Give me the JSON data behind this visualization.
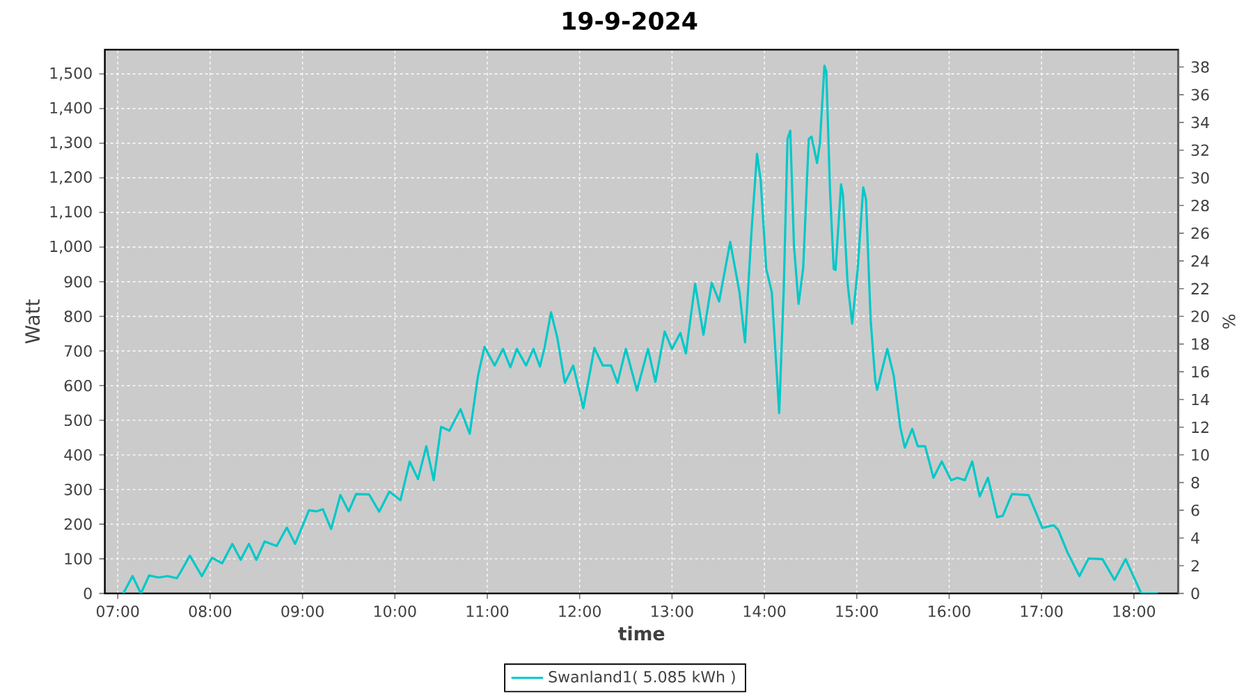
{
  "chart_data": {
    "type": "line",
    "title": "19-9-2024",
    "xlabel": "time",
    "ylabel": "Watt",
    "y2label": "%",
    "x": [
      7.06,
      7.16,
      7.25,
      7.34,
      7.44,
      7.54,
      7.64,
      7.69,
      7.78,
      7.91,
      8.02,
      8.13,
      8.24,
      8.33,
      8.42,
      8.5,
      8.59,
      8.72,
      8.83,
      8.92,
      9.07,
      9.15,
      9.22,
      9.31,
      9.41,
      9.5,
      9.58,
      9.72,
      9.83,
      9.94,
      10.06,
      10.16,
      10.25,
      10.34,
      10.42,
      10.5,
      10.59,
      10.71,
      10.81,
      10.9,
      10.97,
      11.08,
      11.17,
      11.25,
      11.32,
      11.42,
      11.5,
      11.57,
      11.62,
      11.69,
      11.76,
      11.84,
      11.93,
      12.04,
      12.16,
      12.25,
      12.34,
      12.41,
      12.5,
      12.62,
      12.74,
      12.82,
      12.92,
      13.0,
      13.09,
      13.15,
      13.25,
      13.34,
      13.43,
      13.51,
      13.63,
      13.73,
      13.79,
      13.86,
      13.92,
      13.96,
      14.02,
      14.08,
      14.16,
      14.21,
      14.25,
      14.28,
      14.32,
      14.37,
      14.42,
      14.48,
      14.51,
      14.57,
      14.6,
      14.65,
      14.67,
      14.71,
      14.75,
      14.77,
      14.83,
      14.85,
      14.9,
      14.95,
      15.01,
      15.07,
      15.1,
      15.15,
      15.2,
      15.22,
      15.33,
      15.4,
      15.47,
      15.52,
      15.6,
      15.66,
      15.74,
      15.83,
      15.92,
      16.02,
      16.09,
      16.17,
      16.25,
      16.33,
      16.42,
      16.52,
      16.58,
      16.68,
      16.86,
      17.01,
      17.13,
      17.18,
      17.28,
      17.41,
      17.51,
      17.66,
      17.79,
      17.91,
      18.08,
      18.26
    ],
    "series": [
      {
        "name": "Swanland1( 5.085 kWh )",
        "color": "#00c8c8",
        "values": [
          0,
          50,
          0,
          52,
          46,
          50,
          44,
          66,
          109,
          50,
          103,
          87,
          143,
          97,
          143,
          97,
          150,
          137,
          190,
          143,
          240,
          237,
          243,
          186,
          284,
          237,
          287,
          286,
          236,
          294,
          269,
          381,
          330,
          425,
          327,
          481,
          470,
          532,
          461,
          629,
          712,
          658,
          706,
          653,
          706,
          658,
          706,
          655,
          709,
          812,
          736,
          608,
          658,
          535,
          709,
          658,
          658,
          608,
          706,
          586,
          706,
          611,
          756,
          706,
          752,
          693,
          894,
          747,
          897,
          843,
          1015,
          870,
          725,
          1044,
          1269,
          1192,
          937,
          870,
          521,
          883,
          1312,
          1336,
          1004,
          836,
          940,
          1312,
          1319,
          1243,
          1299,
          1524,
          1507,
          1165,
          937,
          934,
          1181,
          1151,
          897,
          779,
          937,
          1172,
          1138,
          790,
          615,
          588,
          706,
          629,
          481,
          421,
          475,
          425,
          425,
          334,
          381,
          327,
          334,
          327,
          381,
          280,
          334,
          220,
          224,
          287,
          284,
          189,
          197,
          184,
          119,
          50,
          101,
          99,
          39,
          99,
          0,
          0
        ]
      }
    ],
    "xlim": [
      6.86,
      18.48
    ],
    "xticks": [
      {
        "value": 7,
        "label": "07:00"
      },
      {
        "value": 8,
        "label": "08:00"
      },
      {
        "value": 9,
        "label": "09:00"
      },
      {
        "value": 10,
        "label": "10:00"
      },
      {
        "value": 11,
        "label": "11:00"
      },
      {
        "value": 12,
        "label": "12:00"
      },
      {
        "value": 13,
        "label": "13:00"
      },
      {
        "value": 14,
        "label": "14:00"
      },
      {
        "value": 15,
        "label": "15:00"
      },
      {
        "value": 16,
        "label": "16:00"
      },
      {
        "value": 17,
        "label": "17:00"
      },
      {
        "value": 18,
        "label": "18:00"
      }
    ],
    "ylim": [
      0,
      1570
    ],
    "yticks": [
      0,
      100,
      200,
      300,
      400,
      500,
      600,
      700,
      800,
      900,
      {
        "value": 1000,
        "label": "1,000"
      },
      {
        "value": 1100,
        "label": "1,100"
      },
      {
        "value": 1200,
        "label": "1,200"
      },
      {
        "value": 1300,
        "label": "1,300"
      },
      {
        "value": 1400,
        "label": "1,400"
      },
      {
        "value": 1500,
        "label": "1,500"
      }
    ],
    "y2lim": [
      0,
      39.25
    ],
    "y2ticks": [
      0,
      2,
      4,
      6,
      8,
      10,
      12,
      14,
      16,
      18,
      20,
      22,
      24,
      26,
      28,
      30,
      32,
      34,
      36,
      38
    ],
    "grid": true,
    "legend": "bottom"
  }
}
